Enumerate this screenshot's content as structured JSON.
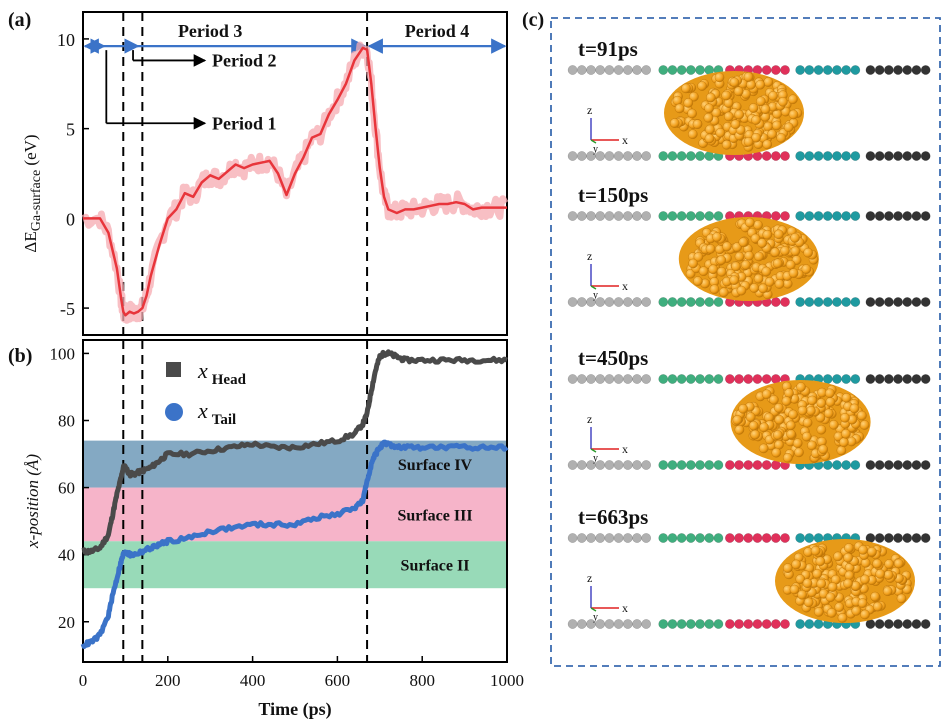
{
  "panels": {
    "a": "(a)",
    "b": "(b)",
    "c": "(c)"
  },
  "chart_data": [
    {
      "type": "line",
      "panel": "(a)",
      "ylabel": "ΔE",
      "ylabel_sub": "Ga-surface",
      "ylabel_unit": " (eV)",
      "xlim": [
        0,
        1000
      ],
      "ylim": [
        -6.5,
        11.5
      ],
      "yticks": [
        -5,
        0,
        5,
        10
      ],
      "vlines": [
        95,
        140,
        670
      ],
      "periods": [
        {
          "label": "Period 3",
          "from": 0,
          "to": 670
        },
        {
          "label": "Period 4",
          "from": 670,
          "to": 1000
        }
      ],
      "period_pointers": [
        {
          "label": "Period 2",
          "x_from": 118,
          "y": 8.8
        },
        {
          "label": "Period 1",
          "x_from": 55,
          "y": 5.3
        }
      ],
      "series": [
        {
          "color": "#e8353b",
          "x": [
            0,
            40,
            60,
            80,
            90,
            95,
            100,
            110,
            120,
            130,
            140,
            150,
            160,
            180,
            200,
            220,
            240,
            260,
            280,
            300,
            320,
            340,
            360,
            380,
            400,
            420,
            440,
            460,
            480,
            500,
            520,
            540,
            560,
            580,
            600,
            620,
            640,
            660,
            670,
            680,
            690,
            700,
            710,
            720,
            740,
            760,
            780,
            800,
            820,
            840,
            860,
            880,
            900,
            920,
            940,
            960,
            980,
            1000
          ],
          "y": [
            0,
            0,
            -0.8,
            -2.8,
            -4.5,
            -5.2,
            -5.4,
            -5.2,
            -5.3,
            -5.2,
            -5.0,
            -4.3,
            -3.2,
            -1.5,
            0,
            0.5,
            1.4,
            1.2,
            2.0,
            2.4,
            2.2,
            2.6,
            3.0,
            2.8,
            3.0,
            3.1,
            3.2,
            2.5,
            1.3,
            2.5,
            3.4,
            4.5,
            4.7,
            5.8,
            6.6,
            7.5,
            8.8,
            9.5,
            9.4,
            7.5,
            5.0,
            2.8,
            1.2,
            0.5,
            0.3,
            0.5,
            0.5,
            0.6,
            0.7,
            0.8,
            0.8,
            0.9,
            0.8,
            0.5,
            0.6,
            0.6,
            0.6,
            0.6
          ]
        }
      ]
    },
    {
      "type": "line",
      "panel": "(b)",
      "xlabel": "Time (ps)",
      "ylabel": "x-position (Å)",
      "xlim": [
        0,
        1000
      ],
      "ylim": [
        8,
        104
      ],
      "xticks": [
        0,
        200,
        400,
        600,
        800,
        1000
      ],
      "yticks": [
        20,
        40,
        60,
        80,
        100
      ],
      "vlines": [
        95,
        140,
        670
      ],
      "bands": [
        {
          "label": "Surface IV",
          "from": 60,
          "to": 74,
          "color": "#6e9ab8"
        },
        {
          "label": "Surface III",
          "from": 44,
          "to": 60,
          "color": "#f4a7bf"
        },
        {
          "label": "Surface II",
          "from": 30,
          "to": 44,
          "color": "#86d3ac"
        }
      ],
      "series": [
        {
          "name": "x",
          "name_sub": "Head",
          "color": "#4a4a4a",
          "x": [
            0,
            20,
            40,
            60,
            70,
            80,
            90,
            95,
            100,
            110,
            120,
            140,
            160,
            180,
            200,
            250,
            300,
            350,
            400,
            450,
            500,
            550,
            600,
            640,
            660,
            670,
            680,
            690,
            700,
            710,
            720,
            740,
            760,
            800,
            850,
            900,
            950,
            1000
          ],
          "y": [
            41,
            41,
            42,
            46,
            52,
            58,
            63,
            66,
            66,
            64,
            64,
            65,
            66,
            68,
            70,
            70,
            71,
            72,
            73,
            72,
            72,
            73,
            74,
            76,
            79,
            82,
            89,
            95,
            99,
            100,
            100,
            99,
            98,
            98,
            98,
            98,
            98,
            98
          ]
        },
        {
          "name": "x",
          "name_sub": "Tail",
          "color": "#3b73c8",
          "x": [
            0,
            20,
            40,
            60,
            70,
            80,
            90,
            95,
            100,
            110,
            120,
            140,
            160,
            180,
            200,
            250,
            300,
            350,
            400,
            450,
            500,
            550,
            600,
            640,
            660,
            670,
            680,
            690,
            700,
            710,
            720,
            740,
            760,
            800,
            850,
            900,
            950,
            1000
          ],
          "y": [
            13,
            14,
            16,
            22,
            28,
            33,
            38,
            40,
            41,
            40,
            40,
            41,
            42,
            43,
            44,
            45,
            47,
            48,
            49,
            49,
            49,
            51,
            52,
            54,
            56,
            62,
            67,
            70,
            72,
            73,
            73,
            72,
            72,
            72,
            72,
            72,
            72,
            72
          ]
        }
      ]
    }
  ],
  "snapshots": [
    {
      "label": "t=91ps",
      "blob_x": 0.3
    },
    {
      "label": "t=150ps",
      "blob_x": 0.34
    },
    {
      "label": "t=450ps",
      "blob_x": 0.48
    },
    {
      "label": "t=663ps",
      "blob_x": 0.6
    }
  ],
  "axis_glyphs": {
    "z": "z",
    "x": "x",
    "y": "y"
  },
  "colors": {
    "frame": "#000000",
    "dashed_border": "#3b6bb0",
    "period_arrow": "#3b73c8",
    "atom_grey": "#b0b0b0",
    "atom_green": "#3fae7e",
    "atom_red": "#e0305a",
    "atom_teal": "#1f9aa0",
    "atom_dark": "#333333",
    "blob": "#f4a321"
  }
}
